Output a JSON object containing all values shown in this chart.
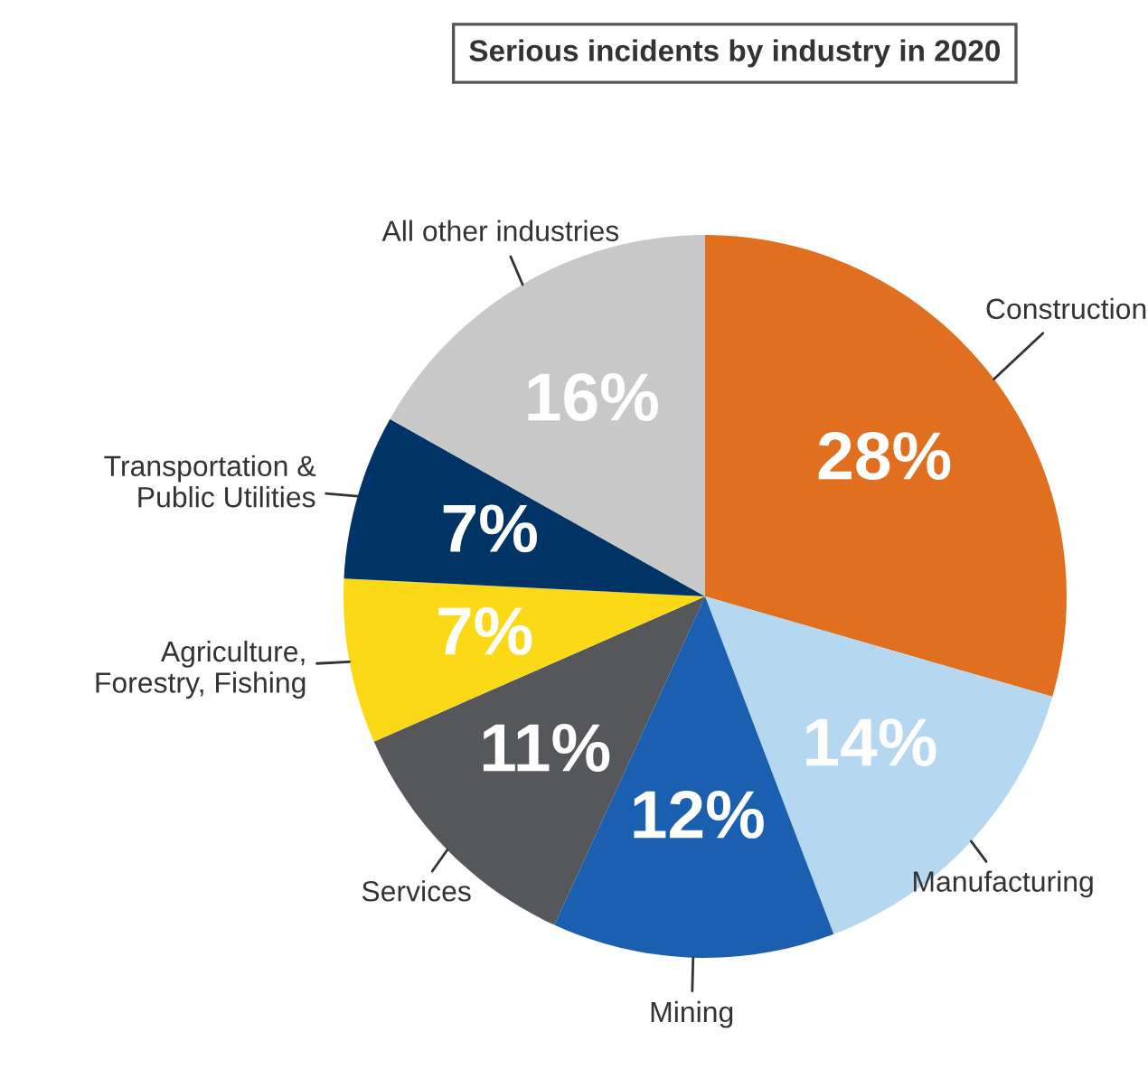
{
  "chart_data": {
    "type": "pie",
    "title": "Serious incidents by industry in 2020",
    "categories": [
      "Construction",
      "Manufacturing",
      "Mining",
      "Services",
      "Agriculture,\nForestry, Fishing",
      "Transportation &\nPublic Utilities",
      "All other industries"
    ],
    "values": [
      28,
      14,
      12,
      11,
      7,
      7,
      16
    ],
    "value_labels": [
      "28%",
      "14%",
      "12%",
      "11%",
      "7%",
      "7%",
      "16%"
    ],
    "colors": [
      "#e07020",
      "#b5d8f0",
      "#1a5fb0",
      "#56575b",
      "#fcd917",
      "#003366",
      "#c8c8c8"
    ],
    "legend": false
  }
}
